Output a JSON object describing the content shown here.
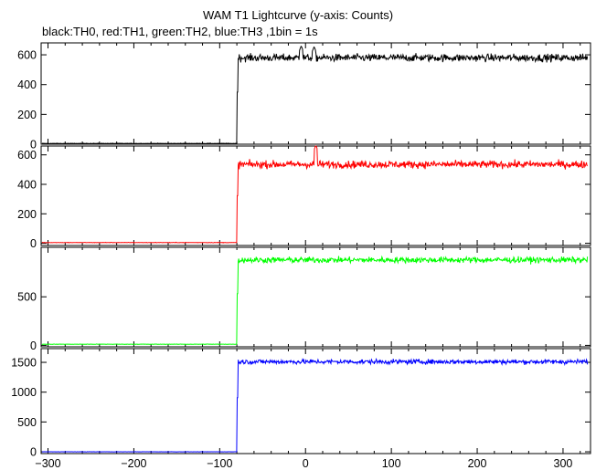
{
  "title": "WAM T1 Lightcurve (y-axis: Counts)",
  "subtitle": "black:TH0, red:TH1, green:TH2, blue:TH3 ,1bin = 1s",
  "chart_data": [
    {
      "type": "line",
      "name": "TH0",
      "color": "#000000",
      "xlim": [
        -308,
        332
      ],
      "ylim": [
        0,
        680
      ],
      "yticks": [
        0,
        200,
        400,
        600
      ],
      "onset_x": -80,
      "pre_level": 5,
      "post_level": 580,
      "noise": 18,
      "features": [
        {
          "x": -5,
          "peak": 660
        },
        {
          "x": 10,
          "peak": 655
        }
      ]
    },
    {
      "type": "line",
      "name": "TH1",
      "color": "#ff0000",
      "xlim": [
        -308,
        332
      ],
      "ylim": [
        -15,
        660
      ],
      "yticks": [
        0,
        200,
        400,
        600
      ],
      "onset_x": -80,
      "pre_level": 5,
      "post_level": 535,
      "noise": 18,
      "features": [
        {
          "x": 12,
          "peak": 665
        }
      ]
    },
    {
      "type": "line",
      "name": "TH2",
      "color": "#00ff00",
      "xlim": [
        -308,
        332
      ],
      "ylim": [
        -15,
        1010
      ],
      "yticks": [
        0,
        500
      ],
      "onset_x": -80,
      "pre_level": 12,
      "post_level": 880,
      "noise": 22,
      "features": []
    },
    {
      "type": "line",
      "name": "TH3",
      "color": "#0000ff",
      "xlim": [
        -308,
        332
      ],
      "ylim": [
        -30,
        1730
      ],
      "yticks": [
        0,
        500,
        1000,
        1500
      ],
      "onset_x": -80,
      "pre_level": 0,
      "post_level": 1510,
      "noise": 28,
      "features": []
    }
  ],
  "x_axis": {
    "ticks": [
      -300,
      -200,
      -100,
      0,
      100,
      200,
      300
    ],
    "tick_labels": [
      "−300",
      "−200",
      "−100",
      "0",
      "100",
      "200",
      "300"
    ]
  }
}
